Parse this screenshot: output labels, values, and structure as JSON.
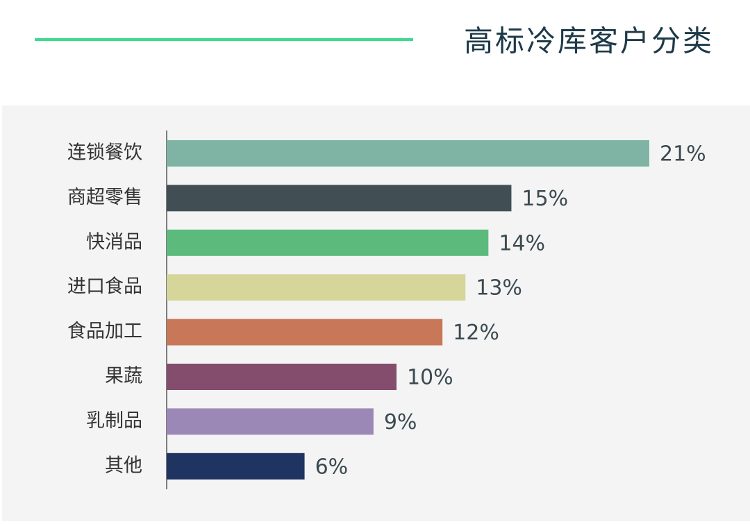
{
  "chart_data": {
    "type": "bar",
    "orientation": "horizontal",
    "title": "高标冷库客户分类",
    "categories": [
      "连锁餐饮",
      "商超零售",
      "快消品",
      "进口食品",
      "食品加工",
      "果蔬",
      "乳制品",
      "其他"
    ],
    "values": [
      21,
      15,
      14,
      13,
      12,
      10,
      9,
      6
    ],
    "value_labels": [
      "21%",
      "15%",
      "14%",
      "13%",
      "12%",
      "10%",
      "9%",
      "6%"
    ],
    "colors": [
      "#7fb4a5",
      "#414f54",
      "#5dba7d",
      "#d6d59a",
      "#c87759",
      "#844d6d",
      "#9c88b7",
      "#1f3461"
    ]
  }
}
